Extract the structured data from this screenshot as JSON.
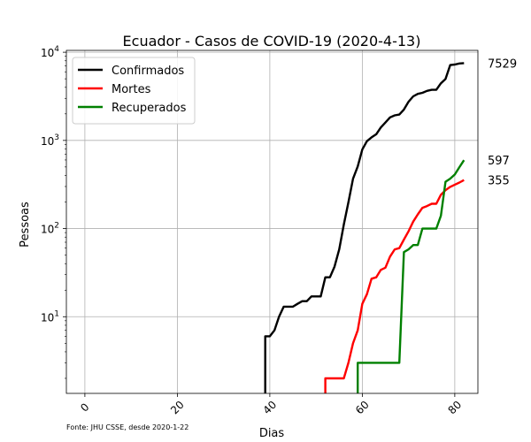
{
  "chart_data": {
    "type": "line",
    "title": "Ecuador - Casos de COVID-19 (2020-4-13)",
    "xlabel": "Dias",
    "ylabel": "Pessoas",
    "yscale": "log",
    "xlim": [
      -4,
      85
    ],
    "ylim": [
      1.35,
      10500
    ],
    "xticks": [
      0,
      20,
      40,
      60,
      80
    ],
    "xtick_labels": [
      "0",
      "20",
      "40",
      "60",
      "80"
    ],
    "yticks": [
      10,
      100,
      1000,
      10000
    ],
    "ytick_labels": [
      {
        "base": "10",
        "exp": "1"
      },
      {
        "base": "10",
        "exp": "2"
      },
      {
        "base": "10",
        "exp": "3"
      },
      {
        "base": "10",
        "exp": "4"
      }
    ],
    "grid": true,
    "legend_position": "upper left",
    "source": "Fonte: JHU CSSE, desde 2020-1-22",
    "series": [
      {
        "name": "Confirmados",
        "color": "#000000",
        "end_label": "7529",
        "points": [
          [
            39,
            1.0
          ],
          [
            39,
            6
          ],
          [
            40,
            6
          ],
          [
            41,
            7
          ],
          [
            42,
            10
          ],
          [
            43,
            13
          ],
          [
            44,
            13
          ],
          [
            45,
            13
          ],
          [
            46,
            14
          ],
          [
            47,
            15
          ],
          [
            48,
            15
          ],
          [
            49,
            17
          ],
          [
            50,
            17
          ],
          [
            51,
            17
          ],
          [
            52,
            28
          ],
          [
            53,
            28
          ],
          [
            54,
            37
          ],
          [
            55,
            58
          ],
          [
            56,
            111
          ],
          [
            57,
            199
          ],
          [
            58,
            367
          ],
          [
            59,
            506
          ],
          [
            60,
            789
          ],
          [
            61,
            981
          ],
          [
            62,
            1082
          ],
          [
            63,
            1173
          ],
          [
            64,
            1403
          ],
          [
            65,
            1595
          ],
          [
            66,
            1823
          ],
          [
            67,
            1924
          ],
          [
            68,
            1962
          ],
          [
            69,
            2240
          ],
          [
            70,
            2748
          ],
          [
            71,
            3163
          ],
          [
            72,
            3368
          ],
          [
            73,
            3465
          ],
          [
            74,
            3646
          ],
          [
            75,
            3747
          ],
          [
            76,
            3747
          ],
          [
            77,
            4450
          ],
          [
            78,
            4965
          ],
          [
            79,
            7161
          ],
          [
            80,
            7257
          ],
          [
            81,
            7466
          ],
          [
            82,
            7529
          ]
        ]
      },
      {
        "name": "Mortes",
        "color": "#ff0000",
        "end_label": "355",
        "points": [
          [
            52,
            1.0
          ],
          [
            52,
            2
          ],
          [
            53,
            2
          ],
          [
            54,
            2
          ],
          [
            55,
            2
          ],
          [
            56,
            2
          ],
          [
            57,
            3
          ],
          [
            58,
            5
          ],
          [
            59,
            7
          ],
          [
            60,
            14
          ],
          [
            61,
            18
          ],
          [
            62,
            27
          ],
          [
            63,
            28
          ],
          [
            64,
            34
          ],
          [
            65,
            36
          ],
          [
            66,
            48
          ],
          [
            67,
            58
          ],
          [
            68,
            60
          ],
          [
            69,
            75
          ],
          [
            70,
            93
          ],
          [
            71,
            120
          ],
          [
            72,
            145
          ],
          [
            73,
            172
          ],
          [
            74,
            180
          ],
          [
            75,
            191
          ],
          [
            76,
            191
          ],
          [
            77,
            242
          ],
          [
            78,
            272
          ],
          [
            79,
            297
          ],
          [
            80,
            315
          ],
          [
            81,
            333
          ],
          [
            82,
            355
          ]
        ]
      },
      {
        "name": "Recuperados",
        "color": "#008000",
        "end_label": "597",
        "points": [
          [
            59,
            1.0
          ],
          [
            59,
            3
          ],
          [
            60,
            3
          ],
          [
            61,
            3
          ],
          [
            62,
            3
          ],
          [
            63,
            3
          ],
          [
            64,
            3
          ],
          [
            65,
            3
          ],
          [
            66,
            3
          ],
          [
            67,
            3
          ],
          [
            68,
            3
          ],
          [
            69,
            54
          ],
          [
            70,
            58
          ],
          [
            71,
            65
          ],
          [
            72,
            65
          ],
          [
            73,
            100
          ],
          [
            74,
            100
          ],
          [
            75,
            100
          ],
          [
            76,
            100
          ],
          [
            77,
            140
          ],
          [
            78,
            340
          ],
          [
            79,
            368
          ],
          [
            80,
            410
          ],
          [
            81,
            497
          ],
          [
            82,
            597
          ]
        ]
      }
    ]
  }
}
